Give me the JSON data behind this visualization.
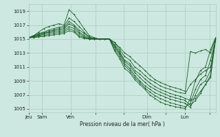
{
  "xlabel": "Pression niveau de la mer( hPa )",
  "bg_color": "#cce8e0",
  "grid_color": "#aaccbb",
  "line_color": "#1a5c28",
  "ylim": [
    1004.5,
    1020
  ],
  "yticks": [
    1005,
    1007,
    1009,
    1011,
    1013,
    1015,
    1017,
    1019
  ],
  "xtick_labels": [
    "Jeu",
    "Sam",
    "Ven",
    "",
    "",
    "Dim",
    "",
    "Lun",
    ""
  ],
  "xtick_pos": [
    0,
    0.7,
    2.2,
    3.5,
    5.0,
    6.2,
    7.2,
    8.2,
    9.5
  ],
  "xlim": [
    0,
    9.8
  ],
  "series": [
    [
      1015.2,
      1015.5,
      1016.0,
      1016.5,
      1016.8,
      1017.0,
      1017.2,
      1017.0,
      1019.2,
      1018.5,
      1017.5,
      1016.5,
      1015.5,
      1015.2,
      1015.0,
      1015.0,
      1015.0,
      1014.5,
      1013.8,
      1013.0,
      1012.5,
      1011.8,
      1011.2,
      1010.5,
      1009.8,
      1009.2,
      1008.8,
      1008.5,
      1008.2,
      1008.0,
      1007.8,
      1007.5,
      1013.2,
      1013.0,
      1013.3,
      1013.5,
      1013.0,
      1015.2
    ],
    [
      1015.2,
      1015.5,
      1015.8,
      1016.0,
      1016.3,
      1016.5,
      1016.7,
      1016.8,
      1018.0,
      1017.5,
      1016.8,
      1016.0,
      1015.3,
      1015.1,
      1015.0,
      1015.0,
      1015.0,
      1014.5,
      1013.5,
      1012.5,
      1012.0,
      1011.0,
      1010.5,
      1009.8,
      1009.2,
      1008.8,
      1008.3,
      1008.0,
      1007.8,
      1007.5,
      1007.3,
      1007.2,
      1008.5,
      1009.2,
      1010.0,
      1010.5,
      1011.0,
      1015.0
    ],
    [
      1015.2,
      1015.4,
      1015.7,
      1015.9,
      1016.1,
      1016.3,
      1016.5,
      1016.6,
      1017.5,
      1017.0,
      1016.3,
      1015.8,
      1015.2,
      1015.0,
      1015.0,
      1015.0,
      1015.0,
      1014.2,
      1013.2,
      1012.0,
      1011.5,
      1010.5,
      1010.0,
      1009.3,
      1008.7,
      1008.2,
      1007.8,
      1007.5,
      1007.2,
      1007.0,
      1006.8,
      1006.5,
      1006.2,
      1006.5,
      1007.5,
      1008.5,
      1009.5,
      1015.0
    ],
    [
      1015.2,
      1015.4,
      1015.6,
      1015.8,
      1016.0,
      1016.2,
      1016.3,
      1016.4,
      1017.2,
      1016.8,
      1016.0,
      1015.5,
      1015.1,
      1015.0,
      1015.0,
      1015.0,
      1015.0,
      1014.0,
      1013.0,
      1011.8,
      1011.2,
      1010.2,
      1009.5,
      1008.8,
      1008.2,
      1007.8,
      1007.4,
      1007.1,
      1006.8,
      1006.6,
      1006.4,
      1006.2,
      1005.5,
      1006.2,
      1007.2,
      1008.5,
      1009.8,
      1015.0
    ],
    [
      1015.2,
      1015.3,
      1015.5,
      1015.7,
      1015.9,
      1016.0,
      1016.1,
      1016.2,
      1016.8,
      1016.5,
      1015.8,
      1015.3,
      1015.0,
      1015.0,
      1015.0,
      1015.0,
      1015.0,
      1013.8,
      1012.8,
      1011.5,
      1010.8,
      1009.8,
      1009.0,
      1008.3,
      1007.8,
      1007.3,
      1007.0,
      1006.7,
      1006.4,
      1006.2,
      1006.0,
      1005.8,
      1005.2,
      1007.0,
      1008.5,
      1009.0,
      1010.5,
      1015.0
    ],
    [
      1015.2,
      1015.3,
      1015.4,
      1015.5,
      1015.7,
      1015.8,
      1015.9,
      1016.0,
      1016.5,
      1016.2,
      1015.5,
      1015.2,
      1015.0,
      1015.0,
      1015.0,
      1015.0,
      1015.0,
      1013.5,
      1012.5,
      1011.2,
      1010.5,
      1009.5,
      1008.8,
      1008.0,
      1007.4,
      1006.9,
      1006.5,
      1006.2,
      1005.9,
      1005.7,
      1005.5,
      1005.3,
      1005.8,
      1007.8,
      1009.2,
      1009.8,
      1012.0,
      1015.0
    ],
    [
      1015.2,
      1015.2,
      1015.3,
      1015.4,
      1015.5,
      1015.6,
      1015.7,
      1015.8,
      1016.2,
      1016.0,
      1015.3,
      1015.1,
      1015.0,
      1015.0,
      1015.0,
      1015.0,
      1015.0,
      1013.3,
      1012.2,
      1010.8,
      1010.2,
      1009.2,
      1008.5,
      1007.8,
      1007.0,
      1006.5,
      1006.0,
      1005.7,
      1005.5,
      1005.3,
      1005.2,
      1005.0,
      1006.5,
      1009.0,
      1010.5,
      1011.0,
      1013.5,
      1015.2
    ]
  ]
}
